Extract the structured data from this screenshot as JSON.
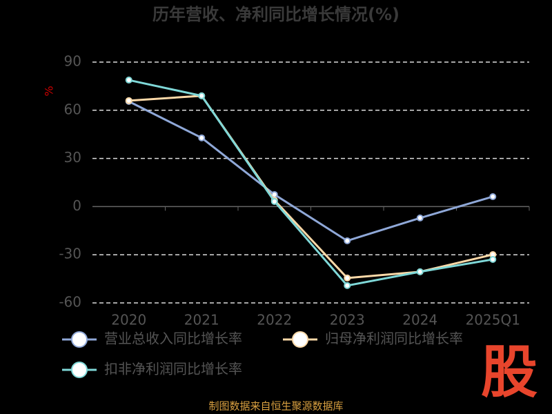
{
  "chart_data": {
    "type": "line",
    "title": "历年营收、净利同比增长情况(%)",
    "y_label": "%",
    "categories": [
      "2020",
      "2021",
      "2022",
      "2023",
      "2024",
      "2025Q1"
    ],
    "series": [
      {
        "name": "营业总收入同比增长率",
        "color": "#8fa8d8",
        "values": [
          65.5,
          42.8,
          7.5,
          -21.3,
          -7.1,
          6.2
        ]
      },
      {
        "name": "归母净利润同比增长率",
        "color": "#fcd9a8",
        "values": [
          66,
          69,
          4,
          -44.5,
          -40.6,
          -29.9
        ]
      },
      {
        "name": "扣非净利润同比增长率",
        "color": "#7fd8d8",
        "values": [
          78.8,
          69,
          3.2,
          -49.2,
          -40.6,
          -32.9
        ]
      }
    ],
    "ylim": [
      -60,
      90
    ],
    "yticks": [
      -60,
      -30,
      0,
      30,
      60,
      90
    ],
    "grid": true,
    "source": "制图数据来自恒生聚源数据库",
    "watermark": "股"
  }
}
